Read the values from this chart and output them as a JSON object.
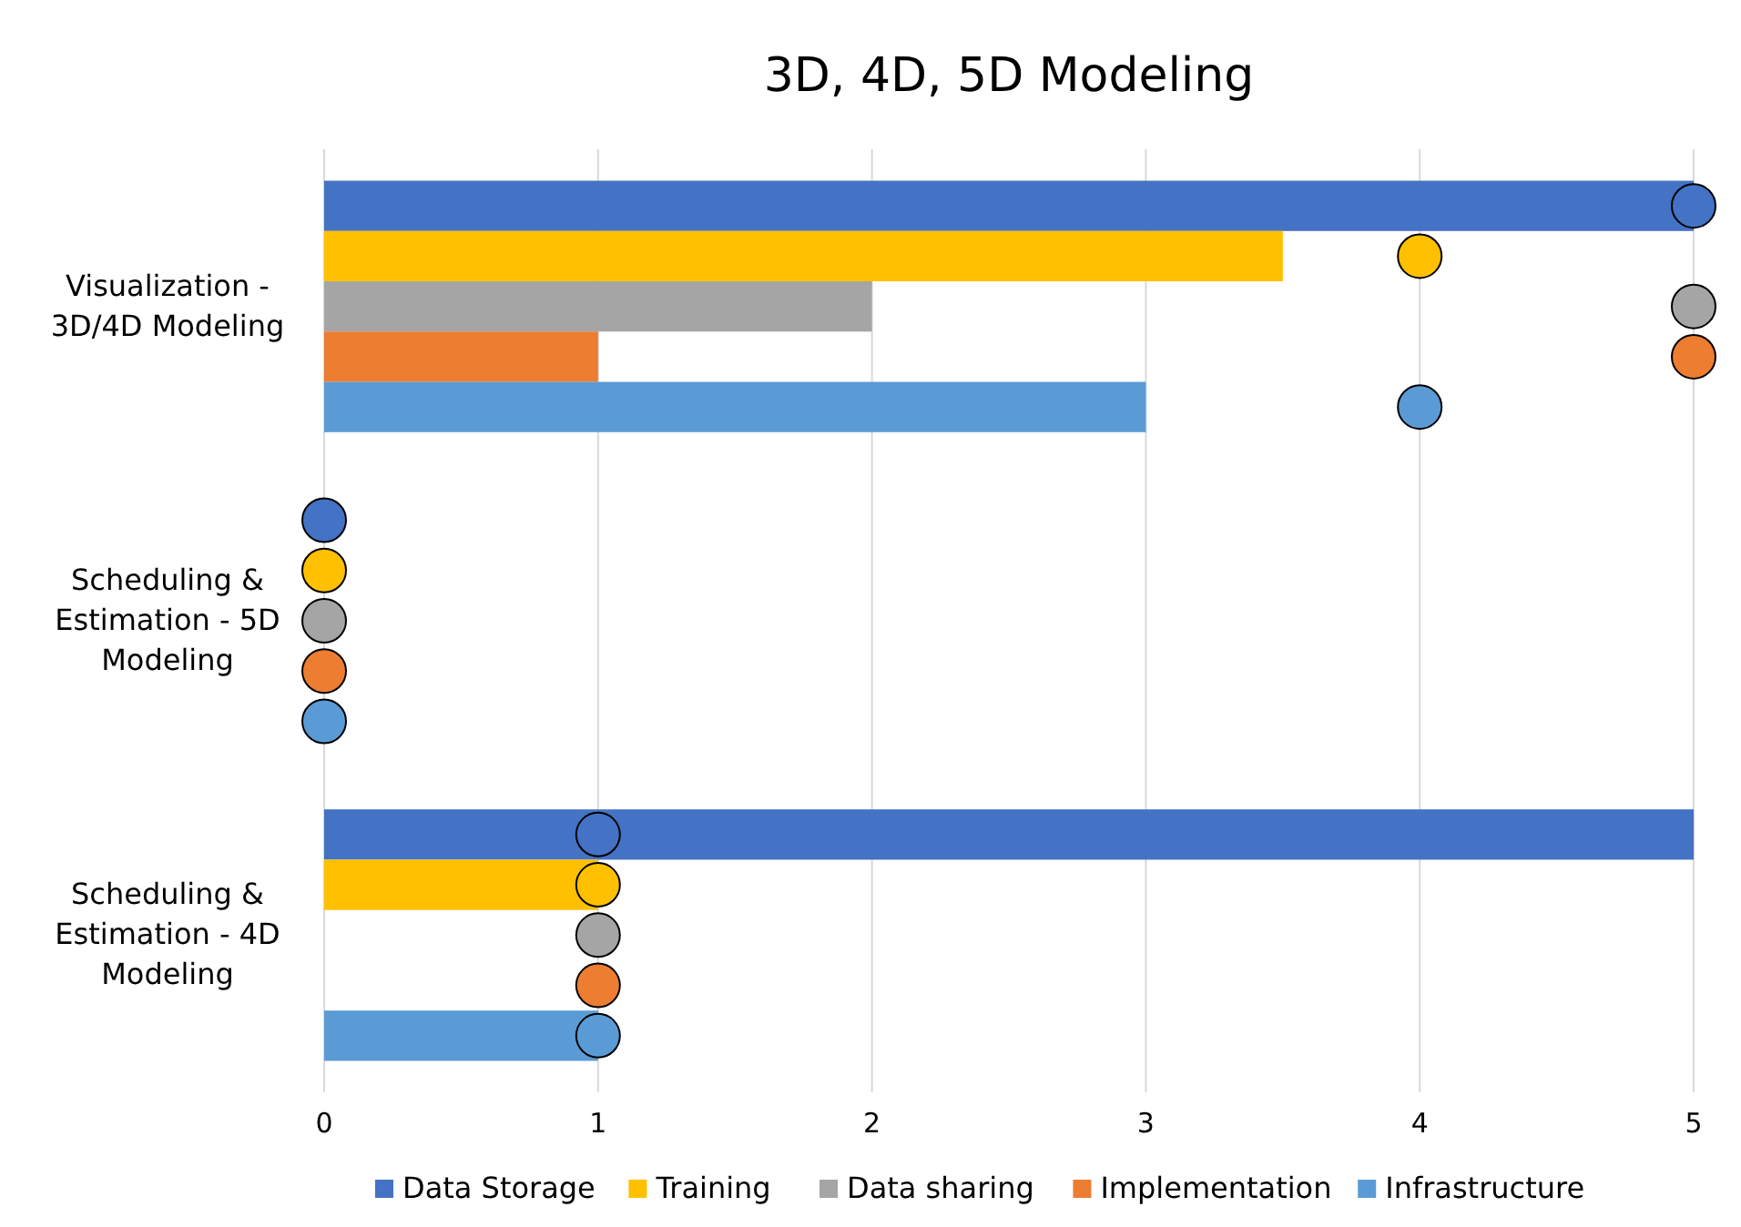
{
  "chart_data": {
    "type": "bar",
    "orientation": "horizontal",
    "title": "3D, 4D, 5D Modeling",
    "categories": [
      "Visualization - 3D/4D Modeling",
      "Scheduling & Estimation - 5D Modeling",
      "Scheduling & Estimation - 4D Modeling"
    ],
    "series": [
      {
        "name": "Data Storage",
        "color": "#4472c4",
        "values": [
          5,
          0,
          5
        ]
      },
      {
        "name": "Training",
        "color": "#ffc000",
        "values": [
          3.5,
          0,
          1
        ]
      },
      {
        "name": "Data sharing",
        "color": "#a5a5a5",
        "values": [
          2,
          0,
          0
        ]
      },
      {
        "name": "Implementation",
        "color": "#ed7d31",
        "values": [
          1,
          0,
          0
        ]
      },
      {
        "name": "Infrastructure",
        "color": "#5b9bd5",
        "values": [
          3,
          0,
          1
        ]
      },
      {
        "type": "scatter",
        "color": "#4472c4",
        "values": [
          5,
          0,
          1
        ]
      },
      {
        "type": "scatter",
        "color": "#ffc000",
        "values": [
          4,
          0,
          1
        ]
      },
      {
        "type": "scatter",
        "color": "#a5a5a5",
        "values": [
          5,
          0,
          1
        ]
      },
      {
        "type": "scatter",
        "color": "#ed7d31",
        "values": [
          5,
          0,
          1
        ]
      },
      {
        "type": "scatter",
        "color": "#5b9bd5",
        "values": [
          4,
          0,
          1
        ]
      }
    ],
    "marker": "circle",
    "xlim": [
      0,
      5
    ],
    "xticks": [
      0,
      1,
      2,
      3,
      4,
      5
    ],
    "grid": "x",
    "legend": "bottom"
  }
}
